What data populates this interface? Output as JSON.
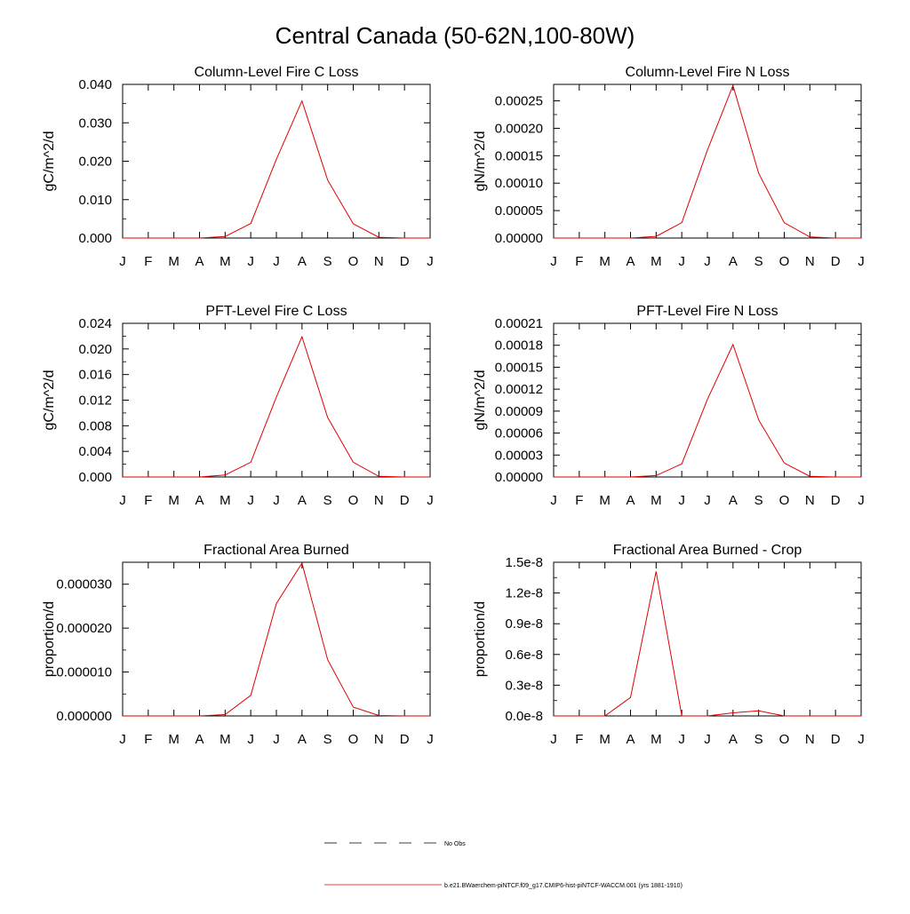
{
  "page_title": "Central Canada (50-62N,100-80W)",
  "months": [
    "J",
    "F",
    "M",
    "A",
    "M",
    "J",
    "J",
    "A",
    "S",
    "O",
    "N",
    "D",
    "J"
  ],
  "legend": {
    "obs_label": "No Obs",
    "model_label": "b.e21.BWaerchem-piNTCF.f09_g17.CMIP6-hist-piNTCF-WACCM.001 (yrs 1881-1910)",
    "obs_color": "#000000",
    "model_color": "#e00000"
  },
  "chart_data": [
    {
      "type": "line",
      "title": "Column-Level Fire C Loss",
      "ylabel": "gC/m^2/d",
      "ylim": [
        0,
        0.04
      ],
      "yticks": [
        0,
        0.01,
        0.02,
        0.03,
        0.04
      ],
      "ytick_labels": [
        "0.000",
        "0.010",
        "0.020",
        "0.030",
        "0.040"
      ],
      "x": [
        "J",
        "F",
        "M",
        "A",
        "M",
        "J",
        "J",
        "A",
        "S",
        "O",
        "N",
        "D",
        "J"
      ],
      "series": [
        {
          "values": [
            0,
            0,
            0,
            0,
            0.0004,
            0.0038,
            0.0205,
            0.0357,
            0.0151,
            0.0037,
            0.0002,
            0,
            0
          ]
        }
      ]
    },
    {
      "type": "line",
      "title": "Column-Level Fire N Loss",
      "ylabel": "gN/m^2/d",
      "ylim": [
        0,
        0.00028
      ],
      "yticks": [
        0,
        5e-05,
        0.0001,
        0.00015,
        0.0002,
        0.00025
      ],
      "ytick_labels": [
        "0.00000",
        "0.00005",
        "0.00010",
        "0.00015",
        "0.00020",
        "0.00025"
      ],
      "x": [
        "J",
        "F",
        "M",
        "A",
        "M",
        "J",
        "J",
        "A",
        "S",
        "O",
        "N",
        "D",
        "J"
      ],
      "series": [
        {
          "values": [
            0,
            0,
            0,
            0,
            3e-06,
            2.8e-05,
            0.00016,
            0.000278,
            0.000118,
            2.8e-05,
            2e-06,
            0,
            0
          ]
        }
      ]
    },
    {
      "type": "line",
      "title": "PFT-Level Fire C Loss",
      "ylabel": "gC/m^2/d",
      "ylim": [
        0,
        0.024
      ],
      "yticks": [
        0,
        0.004,
        0.008,
        0.012,
        0.016,
        0.02,
        0.024
      ],
      "ytick_labels": [
        "0.000",
        "0.004",
        "0.008",
        "0.012",
        "0.016",
        "0.020",
        "0.024"
      ],
      "x": [
        "J",
        "F",
        "M",
        "A",
        "M",
        "J",
        "J",
        "A",
        "S",
        "O",
        "N",
        "D",
        "J"
      ],
      "series": [
        {
          "values": [
            0,
            0,
            0,
            0,
            0.0003,
            0.0023,
            0.0125,
            0.0219,
            0.0093,
            0.0023,
            0.0001,
            0,
            0
          ]
        }
      ]
    },
    {
      "type": "line",
      "title": "PFT-Level Fire N Loss",
      "ylabel": "gN/m^2/d",
      "ylim": [
        0,
        0.00021
      ],
      "yticks": [
        0,
        3e-05,
        6e-05,
        9e-05,
        0.00012,
        0.00015,
        0.00018,
        0.00021
      ],
      "ytick_labels": [
        "0.00000",
        "0.00003",
        "0.00006",
        "0.00009",
        "0.00012",
        "0.00015",
        "0.00018",
        "0.00021"
      ],
      "x": [
        "J",
        "F",
        "M",
        "A",
        "M",
        "J",
        "J",
        "A",
        "S",
        "O",
        "N",
        "D",
        "J"
      ],
      "series": [
        {
          "values": [
            0,
            0,
            0,
            0,
            2e-06,
            1.8e-05,
            0.000106,
            0.000181,
            7.8e-05,
            1.9e-05,
            1e-06,
            0,
            0
          ]
        }
      ]
    },
    {
      "type": "line",
      "title": "Fractional Area Burned",
      "ylabel": "proportion/d",
      "ylim": [
        0,
        3.5e-05
      ],
      "yticks": [
        0,
        1e-05,
        2e-05,
        3e-05
      ],
      "ytick_labels": [
        "0.000000",
        "0.000010",
        "0.000020",
        "0.000030"
      ],
      "x": [
        "J",
        "F",
        "M",
        "A",
        "M",
        "J",
        "J",
        "A",
        "S",
        "O",
        "N",
        "D",
        "J"
      ],
      "series": [
        {
          "values": [
            0,
            0,
            0,
            0,
            3e-07,
            4.7e-06,
            2.56e-05,
            3.48e-05,
            1.28e-05,
            2e-06,
            1e-07,
            0,
            0
          ]
        }
      ]
    },
    {
      "type": "line",
      "title": "Fractional Area Burned - Crop",
      "ylabel": "proportion/d",
      "ylim": [
        0,
        1.5e-08
      ],
      "yticks": [
        0,
        3e-09,
        6e-09,
        9e-09,
        1.2e-08,
        1.5e-08
      ],
      "ytick_labels": [
        "0.0e-8",
        "0.3e-8",
        "0.6e-8",
        "0.9e-8",
        "1.2e-8",
        "1.5e-8"
      ],
      "x": [
        "J",
        "F",
        "M",
        "A",
        "M",
        "J",
        "J",
        "A",
        "S",
        "O",
        "N",
        "D",
        "J"
      ],
      "series": [
        {
          "values": [
            0,
            0,
            0,
            1.8e-09,
            1.41e-08,
            0,
            0,
            3e-10,
            5e-10,
            0,
            0,
            0,
            0
          ]
        }
      ]
    }
  ]
}
